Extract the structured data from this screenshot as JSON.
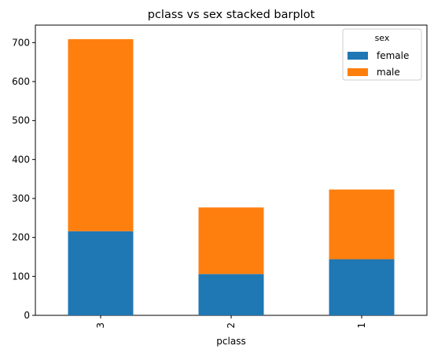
{
  "chart_data": {
    "type": "bar",
    "stacked": true,
    "title": "pclass vs sex stacked barplot",
    "xlabel": "pclass",
    "ylabel": "",
    "categories": [
      "3",
      "2",
      "1"
    ],
    "series": [
      {
        "name": "female",
        "values": [
          216,
          106,
          144
        ],
        "color": "#1f77b4"
      },
      {
        "name": "male",
        "values": [
          493,
          171,
          179
        ],
        "color": "#ff7f0e"
      }
    ],
    "ylim": [
      0,
      745
    ],
    "yticks": [
      0,
      100,
      200,
      300,
      400,
      500,
      600,
      700
    ],
    "legend": {
      "title": "sex",
      "position": "top-right"
    },
    "grid": false
  }
}
